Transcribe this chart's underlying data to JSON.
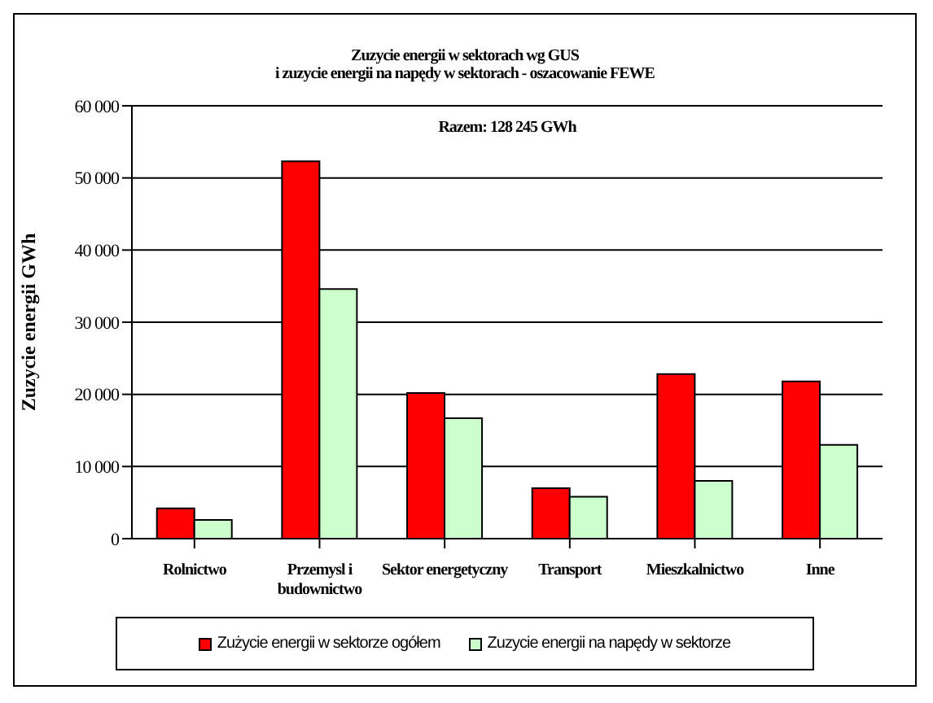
{
  "chart_data": {
    "type": "bar",
    "title": "Zuzycie energii w sektorach wg GUS\ni zuzycie energii na napędy w sektorach - oszacowanie FEWE",
    "ylabel": "Zuzycie energii GWh",
    "annotations": [
      "Razem: 128 245 GWh"
    ],
    "categories": [
      "Rolnictwo",
      "Przemysl i budownictwo",
      "Sektor energetyczny",
      "Transport",
      "Mieszkalnictwo",
      "Inne"
    ],
    "series": [
      {
        "name": "Zużycie energii w sektorze ogółem",
        "color": "#ff0000",
        "values": [
          4200,
          52300,
          20200,
          7000,
          22800,
          21800
        ]
      },
      {
        "name": "Zuzycie energii na napędy w sektorze",
        "color": "#ccffcc",
        "values": [
          2600,
          34600,
          16700,
          5800,
          8000,
          13000
        ]
      }
    ],
    "ylim": [
      0,
      60000
    ],
    "yticks": [
      {
        "value": 0,
        "label": "0"
      },
      {
        "value": 10000,
        "label": "10 000"
      },
      {
        "value": 20000,
        "label": "20 000"
      },
      {
        "value": 30000,
        "label": "30 000"
      },
      {
        "value": 40000,
        "label": "40 000"
      },
      {
        "value": 50000,
        "label": "50 000"
      },
      {
        "value": 60000,
        "label": "60 000"
      }
    ],
    "grid": "y",
    "legend": "bottom"
  }
}
